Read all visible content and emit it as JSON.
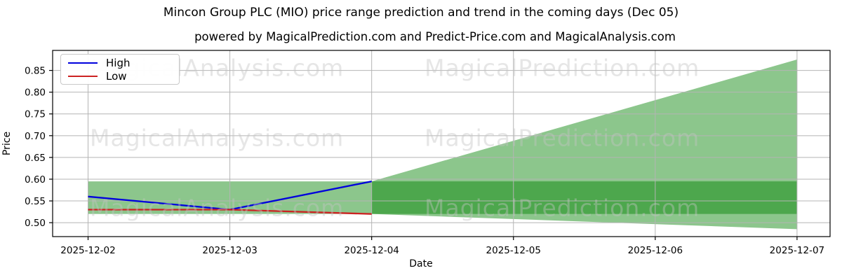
{
  "chart_data": {
    "type": "area",
    "title": "Mincon Group PLC (MIO) price range prediction and trend in the coming days (Dec 05)",
    "subtitle": "powered by MagicalPrediction.com and Predict-Price.com and MagicalAnalysis.com",
    "xlabel": "Date",
    "ylabel": "Price",
    "x_categories": [
      "2025-12-02",
      "2025-12-03",
      "2025-12-04",
      "2025-12-05",
      "2025-12-06",
      "2025-12-07"
    ],
    "yticks": [
      0.5,
      0.55,
      0.6,
      0.65,
      0.7,
      0.75,
      0.8,
      0.85
    ],
    "xlim_days": [
      -0.25,
      5.233
    ],
    "ylim": [
      0.468,
      0.896
    ],
    "grid": true,
    "legend_position": "upper left",
    "legend": [
      {
        "label": "High",
        "color": "#0000dd"
      },
      {
        "label": "Low",
        "color": "#cc2222"
      }
    ],
    "series": [
      {
        "name": "High",
        "type": "line",
        "color": "#0000dd",
        "x": [
          0,
          1,
          2
        ],
        "y": [
          0.56,
          0.53,
          0.595
        ]
      },
      {
        "name": "Low",
        "type": "line",
        "color": "#cc2222",
        "x": [
          0,
          1,
          2
        ],
        "y": [
          0.53,
          0.53,
          0.52
        ]
      }
    ],
    "bands": [
      {
        "name": "history-range-band",
        "x": [
          0,
          2
        ],
        "top": [
          0.595,
          0.595
        ],
        "bottom": [
          0.52,
          0.52
        ],
        "fill": "rgba(0,128,0,0.45)"
      },
      {
        "name": "forecast-range-wedge",
        "x": [
          2,
          5
        ],
        "top": [
          0.595,
          0.875
        ],
        "bottom": [
          0.52,
          0.485
        ],
        "fill": "rgba(0,128,0,0.45)"
      },
      {
        "name": "forecast-continuation-band",
        "x": [
          2,
          5
        ],
        "top": [
          0.595,
          0.595
        ],
        "bottom": [
          0.52,
          0.52
        ],
        "fill": "rgba(0,128,0,0.45)"
      }
    ],
    "colors": {
      "grid": "#b4b4b4",
      "spine": "#000000",
      "tick_label": "#000000",
      "fill_light_rendered": "#8cc68c",
      "fill_dark_rendered": "#46a046"
    }
  },
  "watermark": {
    "texts": [
      "MagicalAnalysis.com",
      "MagicalPrediction.com"
    ]
  }
}
